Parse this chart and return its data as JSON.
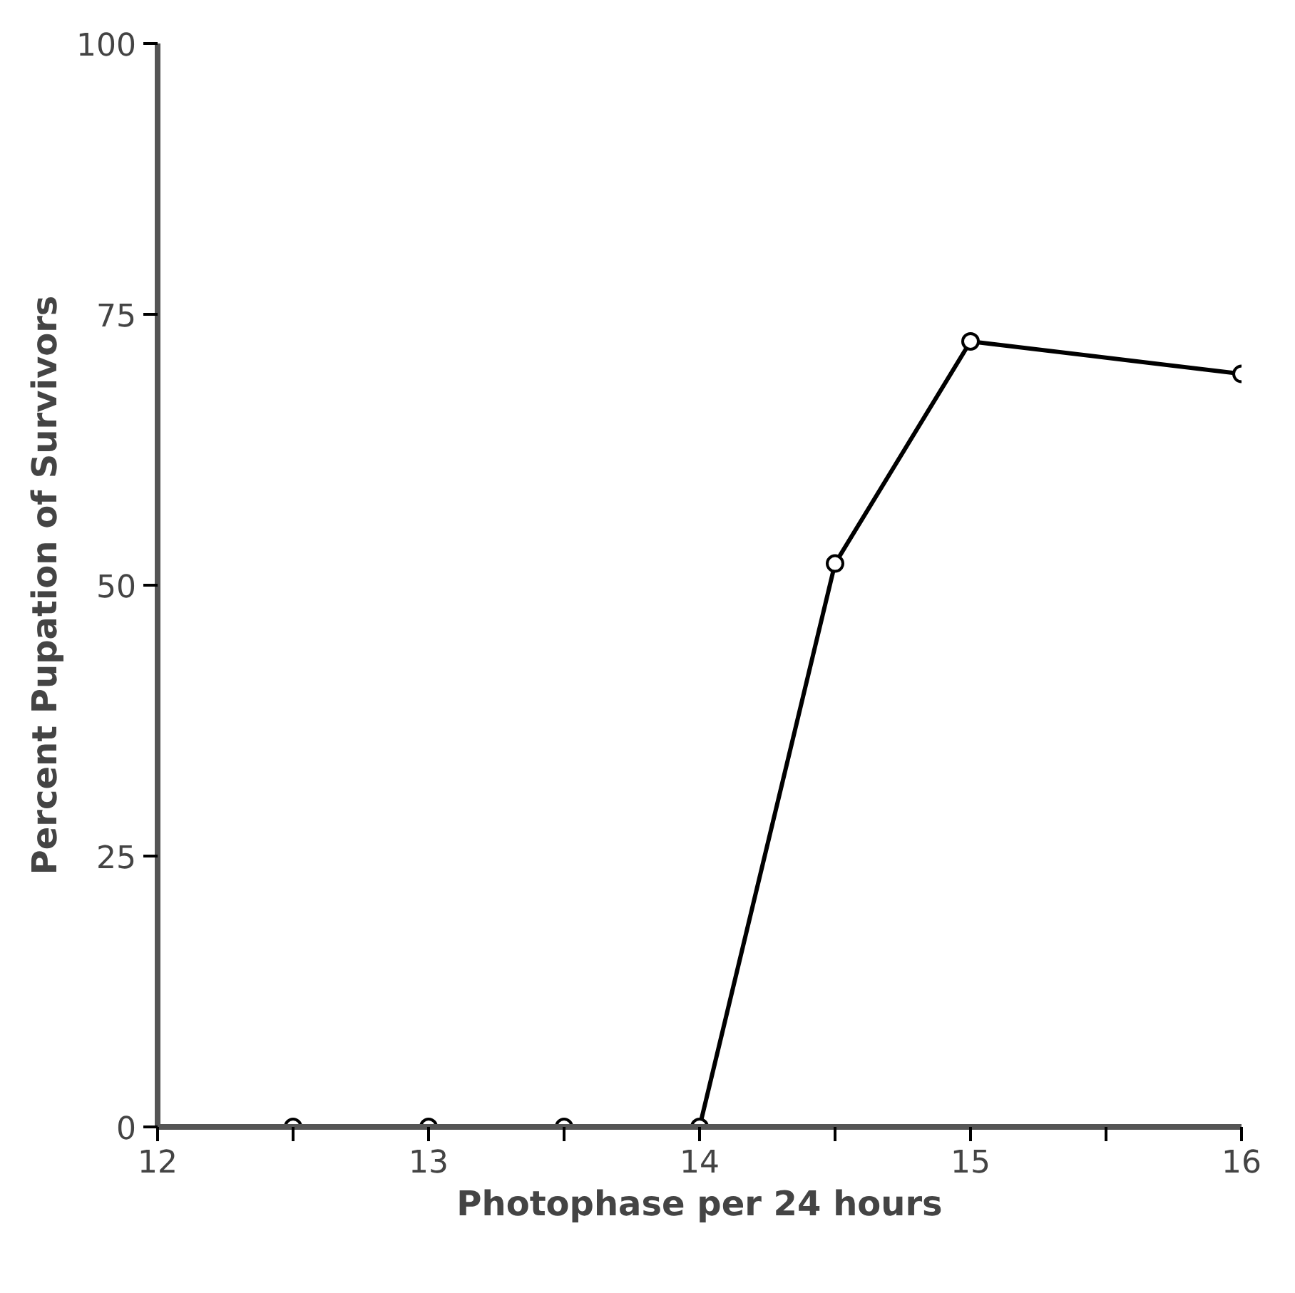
{
  "chart_data": {
    "type": "line",
    "xlabel": "Photophase per 24 hours",
    "ylabel": "Percent Pupation of Survivors",
    "xlim": [
      12,
      16
    ],
    "ylim": [
      0,
      100
    ],
    "xticks": [
      12,
      {
        "value": 12.5,
        "label": null
      },
      13,
      {
        "value": 13.5,
        "label": null
      },
      14,
      {
        "value": 14.5,
        "label": null
      },
      15,
      {
        "value": 15.5,
        "label": null
      },
      16
    ],
    "yticks": [
      0,
      25,
      50,
      75,
      100
    ],
    "marker": "circle",
    "grid": false,
    "series": [
      {
        "type": "scatter",
        "color": "#000000",
        "x": [
          12.5,
          13,
          13.5
        ],
        "values": [
          0,
          0,
          0
        ]
      },
      {
        "color": "#000000",
        "x": [
          14,
          14.5,
          15,
          16
        ],
        "values": [
          0,
          52,
          72.5,
          69.5
        ]
      }
    ]
  }
}
